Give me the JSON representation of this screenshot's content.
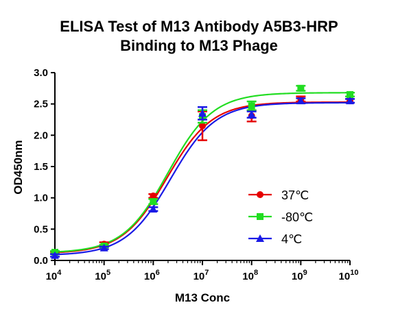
{
  "chart_data": {
    "type": "scatter",
    "title_line1": "ELISA Test of M13 Antibody  A5B3-HRP",
    "title_line2": "Binding to M13 Phage",
    "xlabel": "M13 Conc",
    "ylabel": "OD450nm",
    "x_scale": "log",
    "xlim": [
      10000,
      10000000000
    ],
    "ylim": [
      0.0,
      3.0
    ],
    "x_ticks": [
      {
        "base": "10",
        "exp": "4"
      },
      {
        "base": "10",
        "exp": "5"
      },
      {
        "base": "10",
        "exp": "6"
      },
      {
        "base": "10",
        "exp": "7"
      },
      {
        "base": "10",
        "exp": "8"
      },
      {
        "base": "10",
        "exp": "9"
      },
      {
        "base": "10",
        "exp": "10"
      }
    ],
    "y_ticks": [
      "0.0",
      "0.5",
      "1.0",
      "1.5",
      "2.0",
      "2.5",
      "3.0"
    ],
    "grid": false,
    "legend_position": "lower-right",
    "x": [
      10000,
      100000,
      1000000,
      10000000,
      100000000,
      1000000000,
      10000000000
    ],
    "series": [
      {
        "name": "37℃",
        "color": "#e60000",
        "marker": "circle",
        "values": [
          0.12,
          0.26,
          1.03,
          2.15,
          2.31,
          2.58,
          2.55
        ],
        "errors": [
          0.02,
          0.03,
          0.03,
          0.23,
          0.09,
          0.04,
          0.03
        ],
        "fit": {
          "bottom": 0.11,
          "top": 2.53,
          "log_ec50": 6.28,
          "hill": 0.95
        }
      },
      {
        "name": "-80℃",
        "color": "#22dd22",
        "marker": "square",
        "values": [
          0.13,
          0.23,
          0.94,
          2.3,
          2.47,
          2.75,
          2.65
        ],
        "errors": [
          0.02,
          0.02,
          0.04,
          0.1,
          0.07,
          0.04,
          0.03
        ],
        "fit": {
          "bottom": 0.12,
          "top": 2.68,
          "log_ec50": 6.3,
          "hill": 0.95
        }
      },
      {
        "name": "4℃",
        "color": "#1a1ae6",
        "marker": "triangle",
        "values": [
          0.08,
          0.2,
          0.82,
          2.35,
          2.33,
          2.55,
          2.55
        ],
        "errors": [
          0.02,
          0.02,
          0.03,
          0.1,
          0.05,
          0.04,
          0.03
        ],
        "fit": {
          "bottom": 0.08,
          "top": 2.52,
          "log_ec50": 6.35,
          "hill": 0.95
        }
      }
    ]
  }
}
